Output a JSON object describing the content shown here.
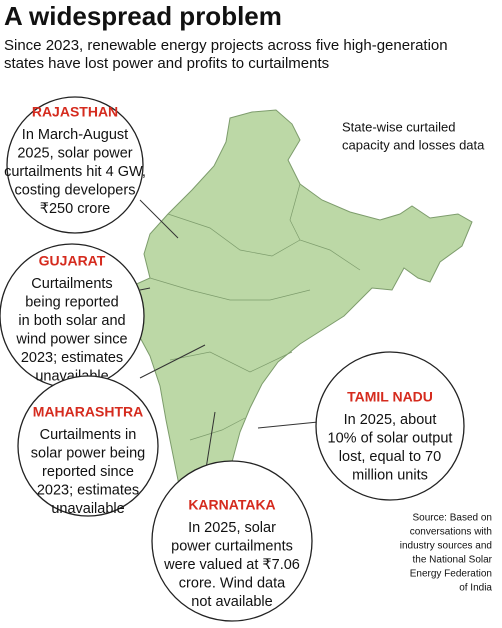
{
  "header": {
    "title": "A widespread problem",
    "subtitle_lines": [
      "Since 2023, renewable energy projects across five high-generation",
      "states have lost power and profits to curtailments"
    ]
  },
  "note_lines": [
    "State-wise curtailed",
    "capacity and losses data"
  ],
  "callouts": [
    {
      "state": "RAJASTHAN",
      "lines": [
        "In March-August",
        "2025, solar power",
        "curtailments hit 4 GW,",
        "costing developers",
        "₹250 crore"
      ]
    },
    {
      "state": "GUJARAT",
      "lines": [
        "Curtailments",
        "being reported",
        "in both solar and",
        "wind power since",
        "2023; estimates",
        "unavailable"
      ]
    },
    {
      "state": "MAHARASHTRA",
      "lines": [
        "Curtailments in",
        "solar power being",
        "reported since",
        "2023; estimates",
        "unavailable"
      ]
    },
    {
      "state": "KARNATAKA",
      "lines": [
        "In 2025, solar",
        "power curtailments",
        "were valued at ₹7.06",
        "crore. Wind data",
        "not available"
      ]
    },
    {
      "state": "TAMIL NADU",
      "lines": [
        "In 2025, about",
        "10% of solar output",
        "lost, equal to 70",
        "million units"
      ]
    }
  ],
  "source_lines": [
    "Source: Based on",
    "conversations with",
    "industry sources and",
    "the National Solar",
    "Energy Federation",
    "of India"
  ]
}
